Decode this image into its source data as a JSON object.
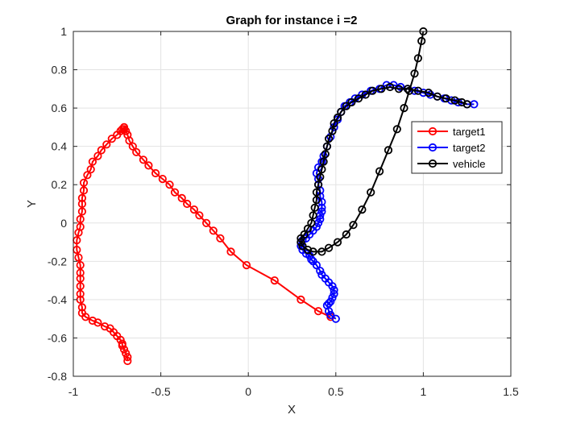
{
  "chart_data": {
    "type": "line",
    "title": "Graph for instance i =2",
    "xlabel": "X",
    "ylabel": "Y",
    "xlim": [
      -1,
      1.5
    ],
    "ylim": [
      -0.8,
      1
    ],
    "xticks": [
      -1,
      -0.5,
      0,
      0.5,
      1,
      1.5
    ],
    "yticks": [
      -0.8,
      -0.6,
      -0.4,
      -0.2,
      0,
      0.2,
      0.4,
      0.6,
      0.8,
      1
    ],
    "xtick_labels": [
      "-1",
      "-0.5",
      "0",
      "0.5",
      "1",
      "1.5"
    ],
    "ytick_labels": [
      "-0.8",
      "-0.6",
      "-0.4",
      "-0.2",
      "0",
      "0.2",
      "0.4",
      "0.6",
      "0.8",
      "1"
    ],
    "grid": true,
    "legend_position": "right",
    "marker": "circle",
    "series": [
      {
        "name": "target1",
        "color": "#ff0000",
        "points": [
          [
            -0.69,
            -0.72
          ],
          [
            -0.69,
            -0.7
          ],
          [
            -0.7,
            -0.68
          ],
          [
            -0.71,
            -0.66
          ],
          [
            -0.72,
            -0.64
          ],
          [
            -0.72,
            -0.63
          ],
          [
            -0.73,
            -0.61
          ],
          [
            -0.75,
            -0.59
          ],
          [
            -0.77,
            -0.57
          ],
          [
            -0.79,
            -0.55
          ],
          [
            -0.82,
            -0.54
          ],
          [
            -0.86,
            -0.52
          ],
          [
            -0.89,
            -0.51
          ],
          [
            -0.93,
            -0.49
          ],
          [
            -0.95,
            -0.47
          ],
          [
            -0.95,
            -0.44
          ],
          [
            -0.96,
            -0.4
          ],
          [
            -0.96,
            -0.37
          ],
          [
            -0.96,
            -0.33
          ],
          [
            -0.96,
            -0.29
          ],
          [
            -0.96,
            -0.26
          ],
          [
            -0.96,
            -0.22
          ],
          [
            -0.97,
            -0.18
          ],
          [
            -0.98,
            -0.14
          ],
          [
            -0.98,
            -0.09
          ],
          [
            -0.97,
            -0.05
          ],
          [
            -0.96,
            -0.02
          ],
          [
            -0.96,
            0.02
          ],
          [
            -0.95,
            0.06
          ],
          [
            -0.95,
            0.1
          ],
          [
            -0.95,
            0.13
          ],
          [
            -0.94,
            0.17
          ],
          [
            -0.94,
            0.21
          ],
          [
            -0.92,
            0.25
          ],
          [
            -0.9,
            0.28
          ],
          [
            -0.89,
            0.32
          ],
          [
            -0.86,
            0.35
          ],
          [
            -0.84,
            0.38
          ],
          [
            -0.81,
            0.41
          ],
          [
            -0.78,
            0.44
          ],
          [
            -0.75,
            0.46
          ],
          [
            -0.73,
            0.48
          ],
          [
            -0.72,
            0.49
          ],
          [
            -0.71,
            0.5
          ],
          [
            -0.71,
            0.49
          ],
          [
            -0.7,
            0.48
          ],
          [
            -0.69,
            0.46
          ],
          [
            -0.68,
            0.43
          ],
          [
            -0.66,
            0.4
          ],
          [
            -0.64,
            0.37
          ],
          [
            -0.6,
            0.33
          ],
          [
            -0.57,
            0.3
          ],
          [
            -0.53,
            0.26
          ],
          [
            -0.49,
            0.23
          ],
          [
            -0.45,
            0.2
          ],
          [
            -0.42,
            0.16
          ],
          [
            -0.38,
            0.13
          ],
          [
            -0.35,
            0.1
          ],
          [
            -0.31,
            0.07
          ],
          [
            -0.28,
            0.04
          ],
          [
            -0.24,
            0.0
          ],
          [
            -0.2,
            -0.04
          ],
          [
            -0.16,
            -0.08
          ],
          [
            -0.1,
            -0.15
          ],
          [
            -0.01,
            -0.22
          ],
          [
            0.15,
            -0.3
          ],
          [
            0.3,
            -0.4
          ],
          [
            0.4,
            -0.46
          ],
          [
            0.47,
            -0.49
          ]
        ]
      },
      {
        "name": "target2",
        "color": "#0000ff",
        "points": [
          [
            0.5,
            -0.5
          ],
          [
            0.47,
            -0.48
          ],
          [
            0.46,
            -0.46
          ],
          [
            0.45,
            -0.43
          ],
          [
            0.46,
            -0.42
          ],
          [
            0.47,
            -0.41
          ],
          [
            0.48,
            -0.39
          ],
          [
            0.49,
            -0.37
          ],
          [
            0.49,
            -0.35
          ],
          [
            0.48,
            -0.33
          ],
          [
            0.46,
            -0.31
          ],
          [
            0.44,
            -0.29
          ],
          [
            0.42,
            -0.27
          ],
          [
            0.41,
            -0.25
          ],
          [
            0.39,
            -0.22
          ],
          [
            0.37,
            -0.2
          ],
          [
            0.36,
            -0.19
          ],
          [
            0.35,
            -0.17
          ],
          [
            0.33,
            -0.16
          ],
          [
            0.31,
            -0.14
          ],
          [
            0.3,
            -0.12
          ],
          [
            0.3,
            -0.1
          ],
          [
            0.31,
            -0.09
          ],
          [
            0.33,
            -0.08
          ],
          [
            0.35,
            -0.06
          ],
          [
            0.37,
            -0.04
          ],
          [
            0.39,
            -0.02
          ],
          [
            0.4,
            0.0
          ],
          [
            0.41,
            0.02
          ],
          [
            0.41,
            0.04
          ],
          [
            0.42,
            0.06
          ],
          [
            0.42,
            0.08
          ],
          [
            0.42,
            0.11
          ],
          [
            0.41,
            0.14
          ],
          [
            0.41,
            0.17
          ],
          [
            0.4,
            0.2
          ],
          [
            0.4,
            0.23
          ],
          [
            0.39,
            0.26
          ],
          [
            0.4,
            0.29
          ],
          [
            0.42,
            0.32
          ],
          [
            0.43,
            0.35
          ],
          [
            0.45,
            0.4
          ],
          [
            0.47,
            0.45
          ],
          [
            0.49,
            0.5
          ],
          [
            0.51,
            0.54
          ],
          [
            0.53,
            0.58
          ],
          [
            0.55,
            0.61
          ],
          [
            0.58,
            0.63
          ],
          [
            0.61,
            0.65
          ],
          [
            0.65,
            0.67
          ],
          [
            0.7,
            0.69
          ],
          [
            0.75,
            0.7
          ],
          [
            0.79,
            0.72
          ],
          [
            0.83,
            0.72
          ],
          [
            0.87,
            0.71
          ],
          [
            0.91,
            0.7
          ],
          [
            0.95,
            0.69
          ],
          [
            1.0,
            0.68
          ],
          [
            1.04,
            0.67
          ],
          [
            1.08,
            0.66
          ],
          [
            1.12,
            0.65
          ],
          [
            1.16,
            0.64
          ],
          [
            1.2,
            0.63
          ],
          [
            1.25,
            0.62
          ],
          [
            1.29,
            0.62
          ]
        ]
      },
      {
        "name": "vehicle",
        "color": "#000000",
        "points": [
          [
            1.0,
            1.0
          ],
          [
            0.99,
            0.95
          ],
          [
            0.97,
            0.86
          ],
          [
            0.95,
            0.78
          ],
          [
            0.92,
            0.69
          ],
          [
            0.89,
            0.6
          ],
          [
            0.85,
            0.49
          ],
          [
            0.8,
            0.38
          ],
          [
            0.75,
            0.27
          ],
          [
            0.7,
            0.16
          ],
          [
            0.65,
            0.07
          ],
          [
            0.6,
            -0.01
          ],
          [
            0.56,
            -0.06
          ],
          [
            0.51,
            -0.1
          ],
          [
            0.46,
            -0.13
          ],
          [
            0.42,
            -0.15
          ],
          [
            0.37,
            -0.15
          ],
          [
            0.34,
            -0.14
          ],
          [
            0.31,
            -0.12
          ],
          [
            0.3,
            -0.1
          ],
          [
            0.3,
            -0.08
          ],
          [
            0.32,
            -0.06
          ],
          [
            0.34,
            -0.03
          ],
          [
            0.36,
            0.0
          ],
          [
            0.37,
            0.04
          ],
          [
            0.38,
            0.08
          ],
          [
            0.39,
            0.12
          ],
          [
            0.39,
            0.16
          ],
          [
            0.4,
            0.2
          ],
          [
            0.41,
            0.24
          ],
          [
            0.42,
            0.28
          ],
          [
            0.43,
            0.32
          ],
          [
            0.44,
            0.36
          ],
          [
            0.45,
            0.4
          ],
          [
            0.46,
            0.44
          ],
          [
            0.48,
            0.48
          ],
          [
            0.49,
            0.52
          ],
          [
            0.51,
            0.55
          ],
          [
            0.53,
            0.58
          ],
          [
            0.56,
            0.61
          ],
          [
            0.59,
            0.63
          ],
          [
            0.63,
            0.65
          ],
          [
            0.67,
            0.67
          ],
          [
            0.71,
            0.69
          ],
          [
            0.76,
            0.7
          ],
          [
            0.81,
            0.71
          ],
          [
            0.86,
            0.7
          ],
          [
            0.91,
            0.7
          ],
          [
            0.97,
            0.69
          ],
          [
            1.03,
            0.68
          ],
          [
            1.08,
            0.66
          ],
          [
            1.13,
            0.65
          ],
          [
            1.18,
            0.64
          ],
          [
            1.22,
            0.63
          ],
          [
            1.25,
            0.62
          ]
        ]
      }
    ]
  }
}
